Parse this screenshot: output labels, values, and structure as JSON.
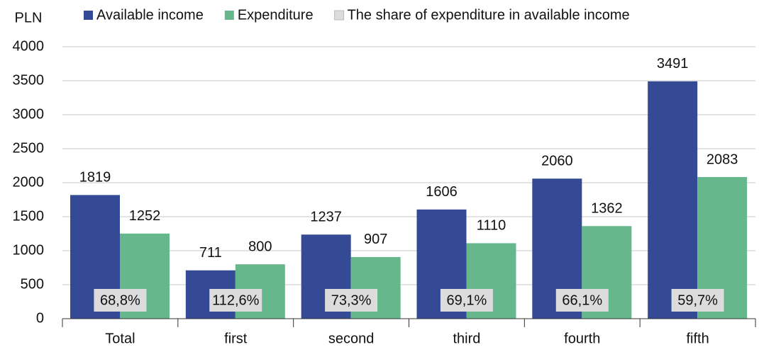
{
  "chart_data": {
    "type": "bar",
    "y_label": "PLN",
    "categories": [
      "Total",
      "first",
      "second",
      "third",
      "fourth",
      "fifth"
    ],
    "series": [
      {
        "name": "Available income",
        "color": "#344a94",
        "values": [
          1819,
          711,
          1237,
          1606,
          2060,
          3491
        ]
      },
      {
        "name": "Expenditure",
        "color": "#66b88c",
        "values": [
          1252,
          800,
          907,
          1110,
          1362,
          2083
        ]
      },
      {
        "name": "The share of expenditure in available income",
        "color": "#dcdcdc",
        "values": [
          68.8,
          112.6,
          73.3,
          69.1,
          66.1,
          59.7
        ],
        "value_labels": [
          "68,8%",
          "112,6%",
          "73,3%",
          "69,1%",
          "66,1%",
          "59,7%"
        ]
      }
    ],
    "ylim": [
      0,
      4000
    ],
    "yticks": [
      0,
      500,
      1000,
      1500,
      2000,
      2500,
      3000,
      3500,
      4000
    ],
    "grid": true
  }
}
